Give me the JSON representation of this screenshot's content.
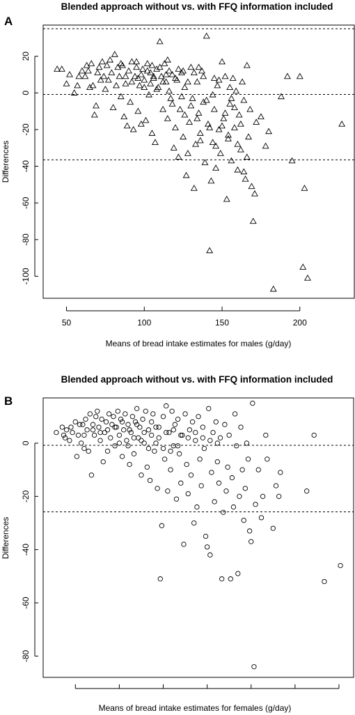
{
  "chart_data": [
    {
      "type": "scatter",
      "panel": "A",
      "title": "Blended approach without vs. with FFQ information included",
      "xlabel": "Means of bread intake estimates for males (g/day)",
      "ylabel": "Differences",
      "xlim": [
        35,
        235
      ],
      "ylim": [
        -112,
        37
      ],
      "x_ticks": [
        50,
        100,
        150,
        200
      ],
      "y_ticks": [
        20,
        0,
        -20,
        -40,
        -60,
        -80,
        -100
      ],
      "x_tick_labels": [
        "50",
        "100",
        "150",
        "200"
      ],
      "y_tick_labels": [
        "20",
        "0",
        "-20",
        "-40",
        "-60",
        "-80",
        "-100"
      ],
      "marker": "triangle",
      "hlines": [
        35,
        -0.8,
        -36.5
      ],
      "grid": false,
      "points": [
        [
          44,
          13
        ],
        [
          47,
          13
        ],
        [
          50,
          5
        ],
        [
          52,
          10
        ],
        [
          55,
          0
        ],
        [
          57,
          4
        ],
        [
          58,
          9
        ],
        [
          60,
          12
        ],
        [
          62,
          9
        ],
        [
          63,
          15
        ],
        [
          64,
          12
        ],
        [
          65,
          3
        ],
        [
          66,
          16
        ],
        [
          67,
          4
        ],
        [
          68,
          -12
        ],
        [
          69,
          -7
        ],
        [
          70,
          11
        ],
        [
          71,
          14
        ],
        [
          72,
          7
        ],
        [
          73,
          17
        ],
        [
          74,
          9
        ],
        [
          75,
          2
        ],
        [
          76,
          15
        ],
        [
          77,
          7
        ],
        [
          78,
          18
        ],
        [
          79,
          11
        ],
        [
          80,
          -8
        ],
        [
          81,
          21
        ],
        [
          82,
          4
        ],
        [
          83,
          14
        ],
        [
          84,
          9
        ],
        [
          85,
          -2
        ],
        [
          86,
          15
        ],
        [
          87,
          -13
        ],
        [
          88,
          9
        ],
        [
          89,
          -18
        ],
        [
          90,
          12
        ],
        [
          91,
          -5
        ],
        [
          92,
          17
        ],
        [
          93,
          -20
        ],
        [
          94,
          9
        ],
        [
          95,
          14
        ],
        [
          96,
          -10
        ],
        [
          97,
          4
        ],
        [
          98,
          -17
        ],
        [
          99,
          13
        ],
        [
          100,
          7
        ],
        [
          101,
          -15
        ],
        [
          102,
          16
        ],
        [
          103,
          -1
        ],
        [
          104,
          11
        ],
        [
          105,
          -22
        ],
        [
          106,
          8
        ],
        [
          107,
          -27
        ],
        [
          108,
          13
        ],
        [
          109,
          3
        ],
        [
          110,
          28
        ],
        [
          111,
          9
        ],
        [
          112,
          -9
        ],
        [
          113,
          16
        ],
        [
          114,
          6
        ],
        [
          115,
          -14
        ],
        [
          116,
          12
        ],
        [
          117,
          -3
        ],
        [
          118,
          10
        ],
        [
          119,
          -30
        ],
        [
          120,
          -19
        ],
        [
          121,
          7
        ],
        [
          122,
          -35
        ],
        [
          123,
          -9
        ],
        [
          124,
          11
        ],
        [
          125,
          -24
        ],
        [
          126,
          3
        ],
        [
          127,
          -45
        ],
        [
          128,
          -33
        ],
        [
          129,
          -16
        ],
        [
          130,
          14
        ],
        [
          131,
          -3
        ],
        [
          132,
          -52
        ],
        [
          133,
          -28
        ],
        [
          134,
          6
        ],
        [
          135,
          -11
        ],
        [
          136,
          -22
        ],
        [
          137,
          12
        ],
        [
          138,
          -5
        ],
        [
          139,
          -38
        ],
        [
          140,
          31
        ],
        [
          141,
          -17
        ],
        [
          142,
          -86
        ],
        [
          143,
          -48
        ],
        [
          144,
          -27
        ],
        [
          145,
          -9
        ],
        [
          146,
          -41
        ],
        [
          147,
          4
        ],
        [
          148,
          -20
        ],
        [
          149,
          -33
        ],
        [
          150,
          17
        ],
        [
          151,
          -14
        ],
        [
          152,
          9
        ],
        [
          153,
          -58
        ],
        [
          154,
          -25
        ],
        [
          155,
          -6
        ],
        [
          156,
          -37
        ],
        [
          157,
          8
        ],
        [
          158,
          -19
        ],
        [
          159,
          1
        ],
        [
          160,
          -42
        ],
        [
          161,
          -12
        ],
        [
          162,
          -31
        ],
        [
          163,
          6
        ],
        [
          164,
          -43
        ],
        [
          165,
          -47
        ],
        [
          166,
          15
        ],
        [
          167,
          -24
        ],
        [
          168,
          -9
        ],
        [
          169,
          -51
        ],
        [
          170,
          -70
        ],
        [
          171,
          -55
        ],
        [
          172,
          -16
        ],
        [
          175,
          -13
        ],
        [
          178,
          -29
        ],
        [
          180,
          -21
        ],
        [
          183,
          -107
        ],
        [
          188,
          -2
        ],
        [
          192,
          9
        ],
        [
          195,
          -37
        ],
        [
          200,
          9
        ],
        [
          202,
          -95
        ],
        [
          203,
          -52
        ],
        [
          205,
          -101
        ],
        [
          227,
          -17
        ],
        [
          88,
          5
        ],
        [
          92,
          6
        ],
        [
          96,
          8
        ],
        [
          98,
          10
        ],
        [
          100,
          3
        ],
        [
          102,
          12
        ],
        [
          104,
          5
        ],
        [
          106,
          9
        ],
        [
          108,
          2
        ],
        [
          110,
          14
        ],
        [
          112,
          6
        ],
        [
          114,
          10
        ],
        [
          116,
          1
        ],
        [
          118,
          -6
        ],
        [
          120,
          8
        ],
        [
          122,
          13
        ],
        [
          124,
          -2
        ],
        [
          126,
          -12
        ],
        [
          128,
          6
        ],
        [
          130,
          -7
        ],
        [
          132,
          11
        ],
        [
          134,
          -14
        ],
        [
          136,
          -26
        ],
        [
          138,
          9
        ],
        [
          140,
          -4
        ],
        [
          142,
          -19
        ],
        [
          144,
          -1
        ],
        [
          146,
          -29
        ],
        [
          148,
          7
        ],
        [
          150,
          -18
        ],
        [
          152,
          -11
        ],
        [
          154,
          -23
        ],
        [
          156,
          -3
        ],
        [
          158,
          -8
        ],
        [
          160,
          -28
        ],
        [
          162,
          -17
        ],
        [
          164,
          -4
        ],
        [
          166,
          -35
        ],
        [
          85,
          16
        ],
        [
          95,
          17
        ],
        [
          105,
          15
        ],
        [
          115,
          18
        ],
        [
          125,
          12
        ],
        [
          135,
          14
        ],
        [
          145,
          8
        ],
        [
          155,
          3
        ]
      ]
    },
    {
      "type": "scatter",
      "panel": "B",
      "title": "Blended approach without vs. with FFQ information included",
      "xlabel": "Means of bread intake estimates for females (g/day)",
      "ylabel": "Differences",
      "xlim": [
        8,
        220
      ],
      "ylim": [
        -88,
        17
      ],
      "y_ticks": [
        0,
        -20,
        -40,
        -60,
        -80
      ],
      "y_tick_labels": [
        "0",
        "-20",
        "-40",
        "-60",
        "-80"
      ],
      "x_ticks": [
        30,
        60,
        90,
        120,
        150,
        180,
        210
      ],
      "marker": "circle",
      "hlines": [
        -0.8,
        -25.8
      ],
      "grid": false,
      "points": [
        [
          17,
          4
        ],
        [
          21,
          6
        ],
        [
          23,
          2
        ],
        [
          24,
          5
        ],
        [
          26,
          1
        ],
        [
          28,
          4
        ],
        [
          30,
          8
        ],
        [
          31,
          -5
        ],
        [
          32,
          3
        ],
        [
          34,
          0
        ],
        [
          35,
          7
        ],
        [
          36,
          -2
        ],
        [
          37,
          9
        ],
        [
          38,
          5
        ],
        [
          39,
          -3
        ],
        [
          40,
          11
        ],
        [
          41,
          -12
        ],
        [
          42,
          7
        ],
        [
          43,
          3
        ],
        [
          44,
          10
        ],
        [
          45,
          12
        ],
        [
          46,
          6
        ],
        [
          47,
          1
        ],
        [
          48,
          9
        ],
        [
          49,
          -7
        ],
        [
          50,
          4
        ],
        [
          51,
          8
        ],
        [
          52,
          -3
        ],
        [
          53,
          11
        ],
        [
          54,
          2
        ],
        [
          55,
          7
        ],
        [
          56,
          10
        ],
        [
          57,
          -1
        ],
        [
          58,
          6
        ],
        [
          59,
          12
        ],
        [
          60,
          3
        ],
        [
          61,
          9
        ],
        [
          62,
          -5
        ],
        [
          63,
          5
        ],
        [
          64,
          11
        ],
        [
          65,
          1
        ],
        [
          66,
          7
        ],
        [
          67,
          -8
        ],
        [
          68,
          4
        ],
        [
          69,
          10
        ],
        [
          70,
          -4
        ],
        [
          71,
          8
        ],
        [
          72,
          13
        ],
        [
          73,
          2
        ],
        [
          74,
          6
        ],
        [
          75,
          -12
        ],
        [
          76,
          9
        ],
        [
          77,
          0
        ],
        [
          78,
          12
        ],
        [
          79,
          -9
        ],
        [
          80,
          5
        ],
        [
          81,
          -14
        ],
        [
          82,
          8
        ],
        [
          83,
          11
        ],
        [
          84,
          -3
        ],
        [
          85,
          6
        ],
        [
          86,
          -17
        ],
        [
          87,
          2
        ],
        [
          88,
          -51
        ],
        [
          89,
          -31
        ],
        [
          90,
          10
        ],
        [
          91,
          -6
        ],
        [
          92,
          14
        ],
        [
          93,
          -18
        ],
        [
          94,
          4
        ],
        [
          95,
          -10
        ],
        [
          96,
          12
        ],
        [
          97,
          -1
        ],
        [
          98,
          7
        ],
        [
          99,
          -21
        ],
        [
          100,
          9
        ],
        [
          101,
          -4
        ],
        [
          102,
          -15
        ],
        [
          103,
          3
        ],
        [
          104,
          -38
        ],
        [
          105,
          11
        ],
        [
          106,
          -8
        ],
        [
          107,
          -19
        ],
        [
          108,
          5
        ],
        [
          109,
          -12
        ],
        [
          110,
          8
        ],
        [
          111,
          -30
        ],
        [
          112,
          1
        ],
        [
          113,
          -24
        ],
        [
          114,
          10
        ],
        [
          115,
          -6
        ],
        [
          116,
          -16
        ],
        [
          117,
          6
        ],
        [
          118,
          -2
        ],
        [
          119,
          -35
        ],
        [
          120,
          -39
        ],
        [
          121,
          13
        ],
        [
          122,
          -42
        ],
        [
          123,
          -11
        ],
        [
          124,
          4
        ],
        [
          125,
          -22
        ],
        [
          126,
          8
        ],
        [
          127,
          -7
        ],
        [
          128,
          -15
        ],
        [
          129,
          2
        ],
        [
          130,
          -51
        ],
        [
          131,
          -26
        ],
        [
          132,
          7
        ],
        [
          133,
          -18
        ],
        [
          134,
          -9
        ],
        [
          135,
          3
        ],
        [
          136,
          -51
        ],
        [
          137,
          -13
        ],
        [
          138,
          -24
        ],
        [
          139,
          11
        ],
        [
          140,
          -1
        ],
        [
          141,
          -49
        ],
        [
          142,
          -20
        ],
        [
          143,
          6
        ],
        [
          144,
          -10
        ],
        [
          145,
          -29
        ],
        [
          146,
          -17
        ],
        [
          147,
          0
        ],
        [
          148,
          -6
        ],
        [
          149,
          -33
        ],
        [
          150,
          -37
        ],
        [
          151,
          15
        ],
        [
          152,
          -84
        ],
        [
          153,
          -23
        ],
        [
          155,
          -10
        ],
        [
          157,
          -28
        ],
        [
          158,
          -20
        ],
        [
          160,
          3
        ],
        [
          161,
          -6
        ],
        [
          165,
          -32
        ],
        [
          167,
          -16
        ],
        [
          169,
          -20
        ],
        [
          170,
          -11
        ],
        [
          188,
          -18
        ],
        [
          193,
          3
        ],
        [
          200,
          -52
        ],
        [
          211,
          -46
        ],
        [
          22,
          3
        ],
        [
          27,
          6
        ],
        [
          33,
          7
        ],
        [
          36,
          3
        ],
        [
          42,
          5
        ],
        [
          47,
          4
        ],
        [
          52,
          5
        ],
        [
          57,
          6
        ],
        [
          62,
          8
        ],
        [
          67,
          5
        ],
        [
          72,
          7
        ],
        [
          77,
          4
        ],
        [
          82,
          3
        ],
        [
          87,
          6
        ],
        [
          92,
          4
        ],
        [
          97,
          5
        ],
        [
          102,
          3
        ],
        [
          107,
          2
        ],
        [
          112,
          4
        ],
        [
          117,
          2
        ],
        [
          122,
          1
        ],
        [
          127,
          0
        ],
        [
          60,
          0
        ],
        [
          66,
          -1
        ],
        [
          70,
          2
        ],
        [
          75,
          1
        ],
        [
          80,
          -2
        ],
        [
          85,
          0
        ],
        [
          90,
          -2
        ],
        [
          95,
          -3
        ],
        [
          100,
          -1
        ]
      ]
    }
  ]
}
